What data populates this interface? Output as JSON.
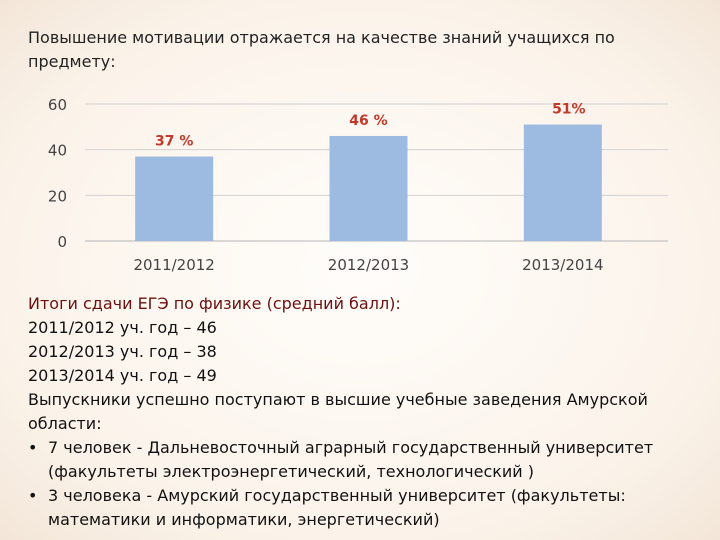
{
  "heading": "Повышение мотивации отражается на качестве знаний учащихся по предмету:",
  "chart_data": {
    "type": "bar",
    "categories": [
      "2011/2012",
      "2012/2013",
      "2013/2014"
    ],
    "values": [
      37,
      46,
      51
    ],
    "data_labels": [
      "37 %",
      "46 %",
      "51%"
    ],
    "yticks": [
      0,
      20,
      40,
      60
    ],
    "ylim": [
      0,
      60
    ],
    "grid": true,
    "bar_color": "#9dbbe0",
    "label_color": "#c0392b",
    "gridline_color": "#d0d0d0"
  },
  "results": {
    "title": "Итоги сдачи ЕГЭ по физике (средний балл):",
    "lines": [
      "2011/2012 уч. год – 46",
      "2012/2013 уч. год – 38",
      "2013/2014 уч. год – 49",
      "Выпускники успешно поступают в высшие учебные заведения Амурской",
      "области:"
    ],
    "bullet_glyph": "•",
    "bullets": [
      {
        "line1": "7 человек - Дальневосточный аграрный государственный университет",
        "line2": "(факультеты электроэнергетический, технологический )"
      },
      {
        "line1": "3 человека -  Амурский государственный университет (факультеты:",
        "line2": "математики и информатики, энергетический)"
      }
    ]
  }
}
